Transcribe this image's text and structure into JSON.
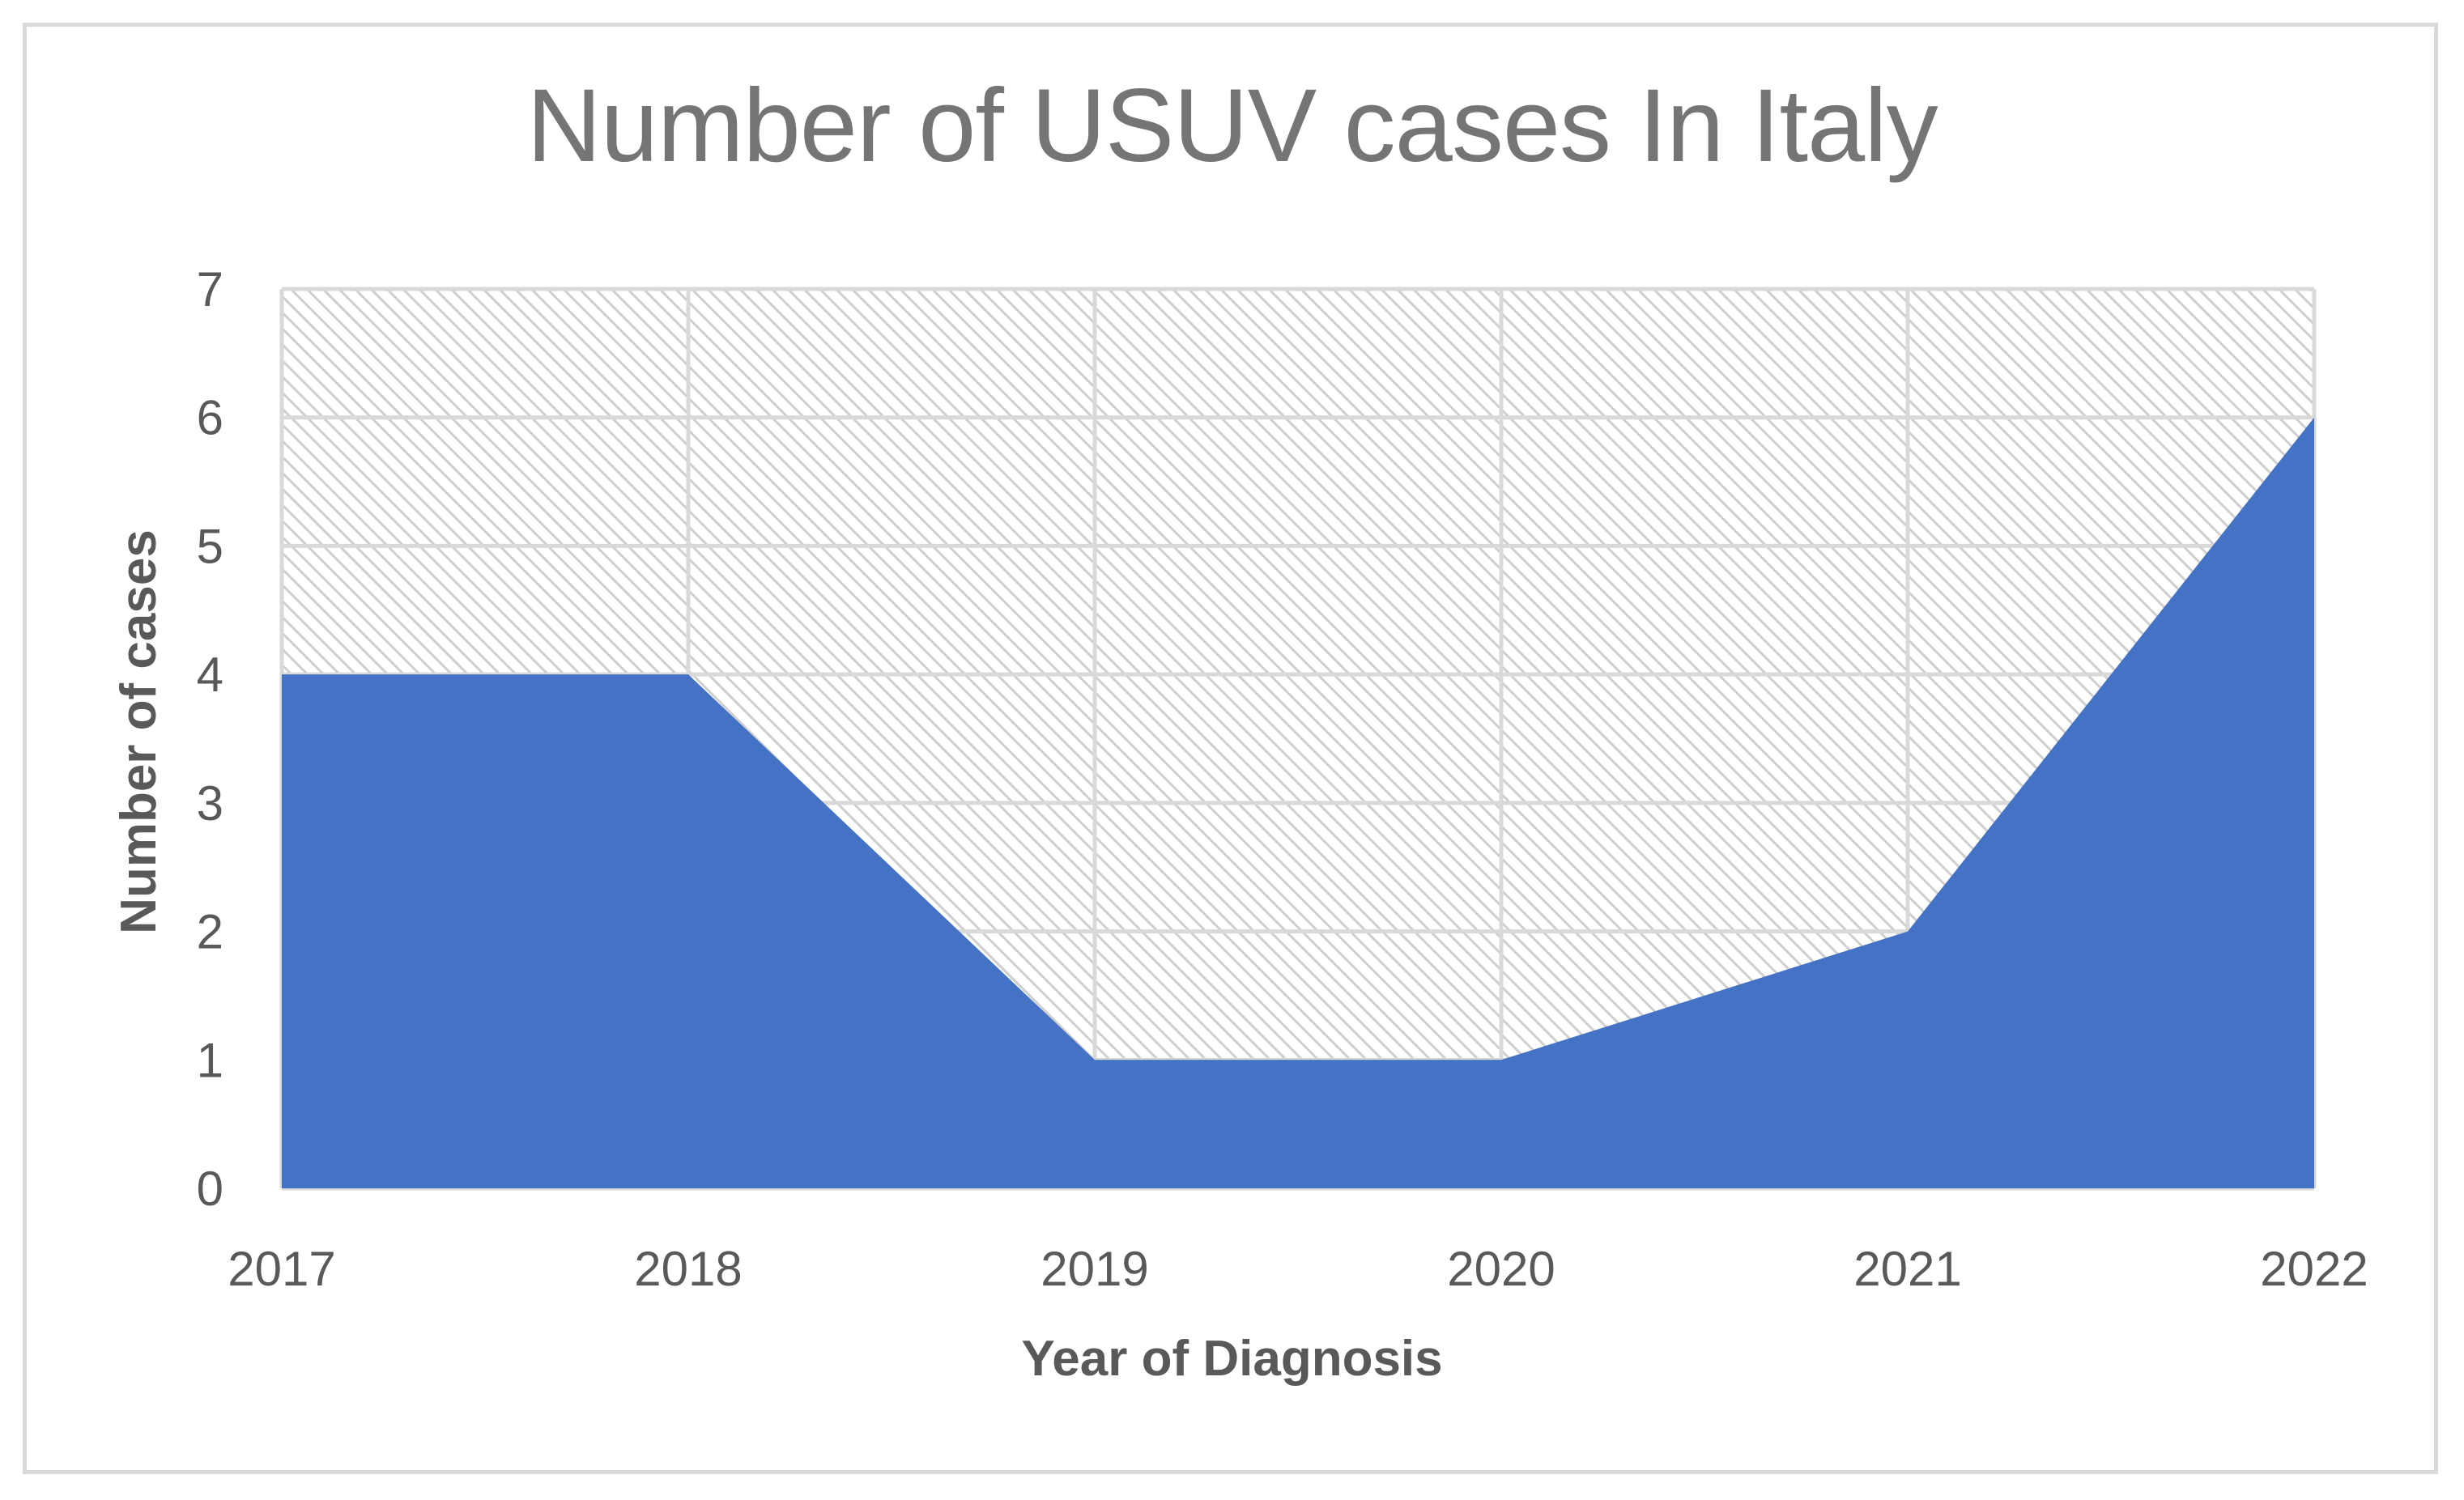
{
  "chart_data": {
    "type": "area",
    "title": "Number of USUV cases In Italy",
    "xlabel": "Year of Diagnosis",
    "ylabel": "Number of cases",
    "categories": [
      "2017",
      "2018",
      "2019",
      "2020",
      "2021",
      "2022"
    ],
    "series": [
      {
        "values": [
          4,
          4,
          1,
          1,
          2,
          6
        ],
        "color": "#4472c4"
      }
    ],
    "y_ticks": [
      "0",
      "1",
      "2",
      "3",
      "4",
      "5",
      "6",
      "7"
    ],
    "ylim": [
      0,
      7
    ],
    "grid": true,
    "legend": "none",
    "background_pattern": "diagonal-hatch"
  }
}
